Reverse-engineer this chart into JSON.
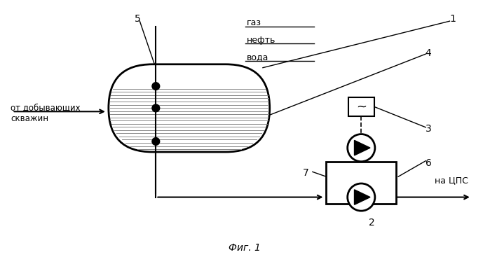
{
  "title": "Фиг. 1",
  "bg_color": "#ffffff",
  "label_ot": "от добывающих\nскважин",
  "label_natsps": "на ЦПС",
  "label_gaz": "газ",
  "label_neft": "нефть",
  "label_voda": "вода",
  "line_color": "#000000"
}
